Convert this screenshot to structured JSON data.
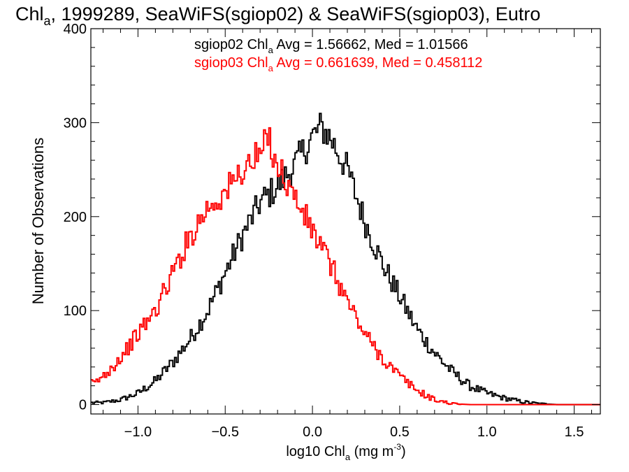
{
  "chart_data": {
    "type": "line",
    "title": {
      "prefix": "Chl",
      "sub": "a",
      "rest": ", 1999289, SeaWiFS(sgiop02) & SeaWiFS(sgiop03), Eutro"
    },
    "xlabel": {
      "prefix": "log10 Chl",
      "sub": "a",
      "mid": " (mg m",
      "sup": "-3",
      "suffix": ")"
    },
    "ylabel": "Number of Observations",
    "xlim": [
      -1.27,
      1.65
    ],
    "ylim": [
      -10,
      400
    ],
    "xticks": [
      -1.0,
      -0.5,
      0.0,
      0.5,
      1.0,
      1.5
    ],
    "xtick_labels": [
      "−1.0",
      "−0.5",
      "0.0",
      "0.5",
      "1.0",
      "1.5"
    ],
    "yticks": [
      0,
      100,
      200,
      300,
      400
    ],
    "ytick_labels": [
      "0",
      "100",
      "200",
      "300",
      "400"
    ],
    "series": [
      {
        "name": "sgiop02",
        "color": "#000000",
        "annotation": {
          "prefix": "sgiop02 Chl",
          "sub": "a",
          "rest": " Avg = 1.56662, Med = 1.01566"
        },
        "x": [
          -1.2,
          -1.1,
          -1.0,
          -0.9,
          -0.8,
          -0.7,
          -0.6,
          -0.5,
          -0.4,
          -0.3,
          -0.2,
          -0.1,
          0.0,
          0.05,
          0.1,
          0.2,
          0.3,
          0.4,
          0.5,
          0.6,
          0.7,
          0.8,
          0.9,
          1.0,
          1.1,
          1.2,
          1.3,
          1.4
        ],
        "y": [
          2,
          5,
          12,
          25,
          45,
          70,
          100,
          140,
          180,
          215,
          232,
          255,
          285,
          295,
          285,
          250,
          195,
          150,
          115,
          80,
          55,
          35,
          20,
          12,
          7,
          3,
          1,
          0
        ]
      },
      {
        "name": "sgiop03",
        "color": "#ff0000",
        "annotation": {
          "prefix": "sgiop03 Chl",
          "sub": "a",
          "rest": " Avg = 0.661639, Med = 0.458112"
        },
        "x": [
          -1.25,
          -1.2,
          -1.1,
          -1.0,
          -0.9,
          -0.8,
          -0.7,
          -0.6,
          -0.5,
          -0.4,
          -0.3,
          -0.25,
          -0.2,
          -0.1,
          0.0,
          0.1,
          0.2,
          0.3,
          0.4,
          0.5,
          0.6,
          0.7,
          0.8,
          0.9
        ],
        "y": [
          22,
          30,
          50,
          75,
          100,
          140,
          180,
          210,
          225,
          250,
          265,
          285,
          255,
          220,
          185,
          150,
          110,
          75,
          50,
          30,
          15,
          5,
          1,
          0
        ]
      }
    ]
  }
}
